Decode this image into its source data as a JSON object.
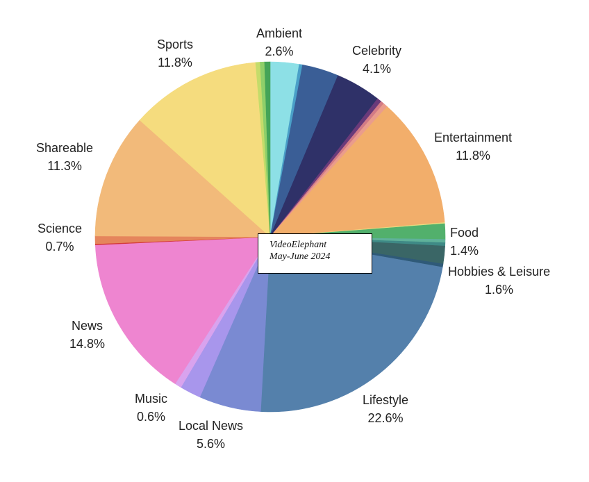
{
  "chart_data": {
    "type": "pie",
    "title": "",
    "annotation": [
      "VideoElephant",
      "May-June 2024"
    ],
    "slices": [
      {
        "label": "Ambient",
        "value": 2.6,
        "pct_label": "2.6%",
        "color": "#8de0e6",
        "labeled": true
      },
      {
        "label": "",
        "value": 0.3,
        "color": "#4aa0c8",
        "labeled": false
      },
      {
        "label": "",
        "value": 3.3,
        "color": "#3a5e96",
        "labeled": false
      },
      {
        "label": "Celebrity",
        "value": 4.1,
        "pct_label": "4.1%",
        "color": "#2f3168",
        "labeled": true
      },
      {
        "label": "",
        "value": 0.4,
        "color": "#6a3a7a",
        "labeled": false
      },
      {
        "label": "",
        "value": 0.3,
        "color": "#d27b86",
        "labeled": false
      },
      {
        "label": "",
        "value": 0.4,
        "color": "#ea9c8c",
        "labeled": false
      },
      {
        "label": "Entertainment",
        "value": 11.8,
        "pct_label": "11.8%",
        "color": "#f2ae6b",
        "labeled": true
      },
      {
        "label": "",
        "value": 0.1,
        "color": "#e8dc80",
        "labeled": false
      },
      {
        "label": "Food",
        "value": 1.4,
        "pct_label": "1.4%",
        "color": "#52b06c",
        "labeled": true
      },
      {
        "label": "",
        "value": 0.3,
        "color": "#5fb19a",
        "labeled": false
      },
      {
        "label": "",
        "value": 0.3,
        "color": "#3f8a86",
        "labeled": false
      },
      {
        "label": "Hobbies & Leisure",
        "value": 1.6,
        "pct_label": "1.6%",
        "color": "#3a6666",
        "labeled": true
      },
      {
        "label": "",
        "value": 0.3,
        "color": "#2f5a78",
        "labeled": false
      },
      {
        "label": "Lifestyle",
        "value": 22.6,
        "pct_label": "22.6%",
        "color": "#5480ab",
        "labeled": true
      },
      {
        "label": "Local News",
        "value": 5.6,
        "pct_label": "5.6%",
        "color": "#7a8ad2",
        "labeled": true
      },
      {
        "label": "",
        "value": 1.9,
        "color": "#a896ec",
        "labeled": false
      },
      {
        "label": "Music",
        "value": 0.6,
        "pct_label": "0.6%",
        "color": "#d9a3ee",
        "labeled": true
      },
      {
        "label": "News",
        "value": 14.8,
        "pct_label": "14.8%",
        "color": "#ee85d0",
        "labeled": true
      },
      {
        "label": "",
        "value": 0.1,
        "color": "#d43a3a",
        "labeled": false
      },
      {
        "label": "Science",
        "value": 0.7,
        "pct_label": "0.7%",
        "color": "#e5855c",
        "labeled": true
      },
      {
        "label": "Shareable",
        "value": 11.3,
        "pct_label": "11.3%",
        "color": "#f2ba7a",
        "labeled": true
      },
      {
        "label": "Sports",
        "value": 11.8,
        "pct_label": "11.8%",
        "color": "#f5dc7e",
        "labeled": true
      },
      {
        "label": "",
        "value": 0.4,
        "color": "#c4dc6a",
        "labeled": false
      },
      {
        "label": "",
        "value": 0.4,
        "color": "#8fcf6a",
        "labeled": false
      },
      {
        "label": "",
        "value": 0.5,
        "color": "#44a458",
        "labeled": false
      }
    ],
    "legend": "none"
  }
}
